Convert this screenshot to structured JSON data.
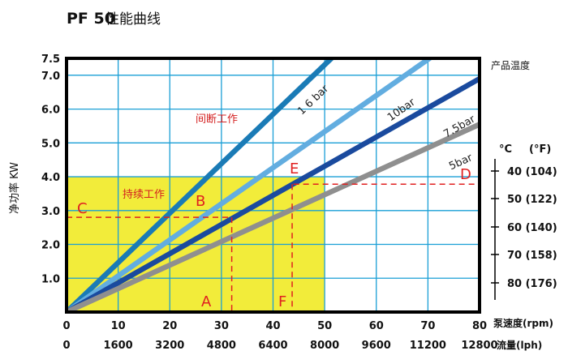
{
  "chart_data": {
    "type": "line",
    "title": "PF 50",
    "title_suffix": "性能曲线",
    "ylabel": "净功率 KW",
    "x_primary_label": "泵速度(rpm)",
    "x_secondary_label": "流量(lph)",
    "temp_title": "产品温度",
    "temp_header_c": "°C",
    "temp_header_f": "(°F)",
    "xlim": [
      0,
      80
    ],
    "ylim": [
      0,
      7.5
    ],
    "x_ticks": [
      0,
      10,
      20,
      30,
      40,
      50,
      60,
      70,
      80
    ],
    "flow_ticks": [
      "0",
      "1600",
      "3200",
      "4800",
      "6400",
      "8000",
      "9600",
      "11200",
      "12800"
    ],
    "y_ticks": [
      "1.0",
      "2.0",
      "3.0",
      "4.0",
      "5.0",
      "6.0",
      "7.0",
      "7.5"
    ],
    "temps": [
      "40 (104)",
      "50 (122)",
      "60 (140)",
      "70 (158)",
      "80 (176)"
    ],
    "grid": true,
    "series": [
      {
        "name": "1 6 bar",
        "color": "#1a7bb6",
        "points": [
          [
            0,
            0
          ],
          [
            51.3,
            7.5
          ]
        ]
      },
      {
        "name": "10bar",
        "color": "#62ade0",
        "points": [
          [
            0,
            0
          ],
          [
            70.3,
            7.5
          ]
        ]
      },
      {
        "name": "7.5bar",
        "color": "#1a4a9e",
        "points": [
          [
            0,
            0
          ],
          [
            80,
            6.9
          ]
        ]
      },
      {
        "name": "5bar",
        "color": "#8f8f8f",
        "points": [
          [
            0,
            0
          ],
          [
            80,
            5.55
          ]
        ]
      }
    ],
    "regions": [
      {
        "label": "持续工作",
        "x": [
          0,
          50
        ],
        "y": [
          0,
          4.0
        ],
        "color": "#f2ec3a"
      },
      {
        "label": "间断工作"
      }
    ],
    "markers": {
      "A": "A",
      "B": "B",
      "C": "C",
      "D": "D",
      "E": "E",
      "F": "F"
    },
    "guides": [
      {
        "from": "C",
        "to": "A",
        "x": 32,
        "y": 2.8
      },
      {
        "from": "D",
        "to": "F",
        "x": 43.7,
        "y": 3.78
      }
    ]
  }
}
